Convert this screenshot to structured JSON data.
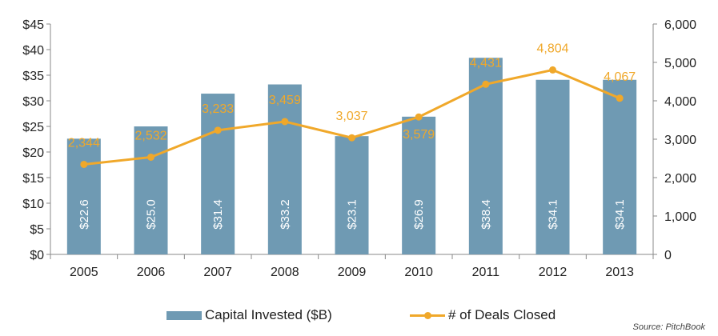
{
  "chart_data": {
    "type": "bar",
    "categories": [
      "2005",
      "2006",
      "2007",
      "2008",
      "2009",
      "2010",
      "2011",
      "2012",
      "2013"
    ],
    "series": [
      {
        "name": "Capital Invested ($B)",
        "type": "bar",
        "axis": "left",
        "values": [
          22.6,
          25.0,
          31.4,
          33.2,
          23.1,
          26.9,
          38.4,
          34.1,
          34.1
        ],
        "labels": [
          "$22.6",
          "$25.0",
          "$31.4",
          "$33.2",
          "$23.1",
          "$26.9",
          "$38.4",
          "$34.1",
          "$34.1"
        ],
        "color": "#6f9ab3"
      },
      {
        "name": "# of Deals Closed",
        "type": "line",
        "axis": "right",
        "values": [
          2344,
          2532,
          3233,
          3459,
          3037,
          3579,
          4431,
          4804,
          4067
        ],
        "labels": [
          "2,344",
          "2,532",
          "3,233",
          "3,459",
          "3,037",
          "3,579",
          "4,431",
          "4,804",
          "4,067"
        ],
        "color": "#f0a82a"
      }
    ],
    "y_left": {
      "range": [
        0,
        45
      ],
      "ticks": [
        0,
        5,
        10,
        15,
        20,
        25,
        30,
        35,
        40,
        45
      ],
      "tick_labels": [
        "$0",
        "$5",
        "$10",
        "$15",
        "$20",
        "$25",
        "$30",
        "$35",
        "$40",
        "$45"
      ]
    },
    "y_right": {
      "range": [
        0,
        6000
      ],
      "ticks": [
        0,
        1000,
        2000,
        3000,
        4000,
        5000,
        6000
      ],
      "tick_labels": [
        "0",
        "1,000",
        "2,000",
        "3,000",
        "4,000",
        "5,000",
        "6,000"
      ]
    },
    "grid": false,
    "legend_position": "bottom"
  },
  "legend": {
    "bar_label": "Capital Invested ($B)",
    "line_label": "# of Deals Closed"
  },
  "source": "Source: PitchBook",
  "colors": {
    "bar": "#6f9ab3",
    "line": "#f0a82a",
    "axis": "#888888"
  }
}
